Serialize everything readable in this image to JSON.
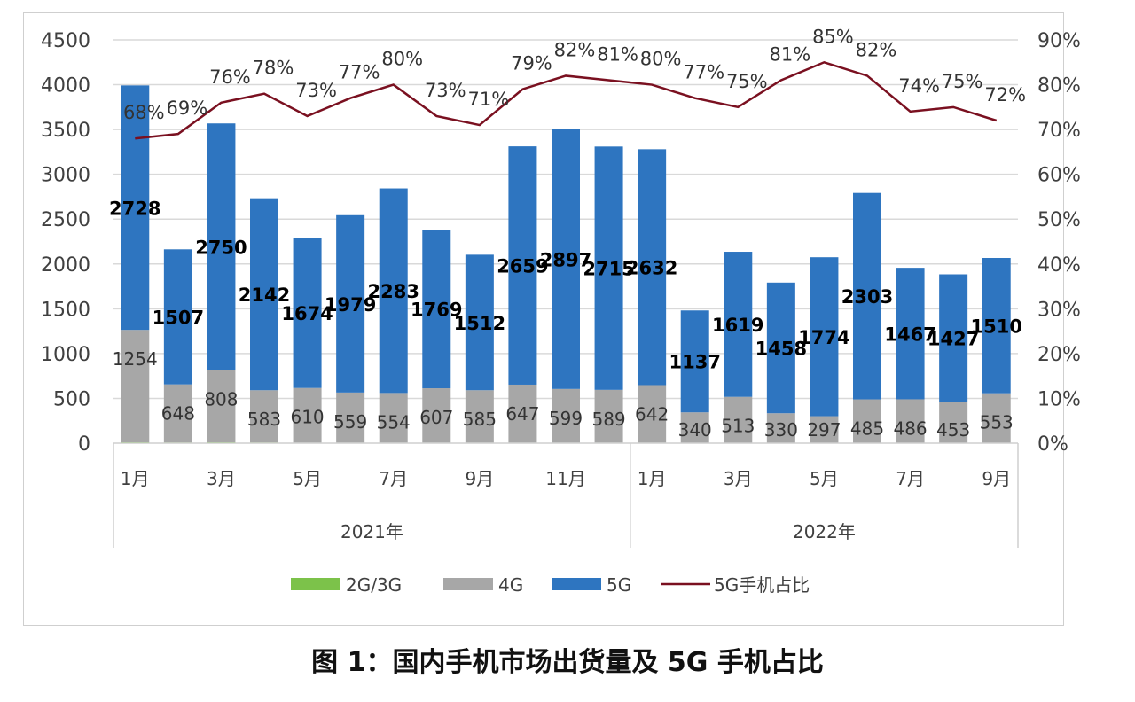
{
  "caption": "图 1：国内手机市场出货量及 5G 手机占比",
  "colors": {
    "g23": "#7cc24a",
    "g4": "#a7a7a7",
    "g5": "#2e75c0",
    "share_line": "#7a1020",
    "grid": "#d9d9d9",
    "axis_text": "#404040"
  },
  "legend": [
    {
      "key": "g23",
      "label": "2G/3G",
      "type": "box"
    },
    {
      "key": "g4",
      "label": "4G",
      "type": "box"
    },
    {
      "key": "g5",
      "label": "5G",
      "type": "box"
    },
    {
      "key": "share_line",
      "label": "5G手机占比",
      "type": "line"
    }
  ],
  "chart_data": {
    "type": "bar",
    "stacked": true,
    "title": "国内手机市场出货量及 5G 手机占比",
    "categories": [
      "2021-1月",
      "2021-2月",
      "2021-3月",
      "2021-4月",
      "2021-5月",
      "2021-6月",
      "2021-7月",
      "2021-8月",
      "2021-9月",
      "2021-10月",
      "2021-11月",
      "2021-12月",
      "2022-1月",
      "2022-2月",
      "2022-3月",
      "2022-4月",
      "2022-5月",
      "2022-6月",
      "2022-7月",
      "2022-8月",
      "2022-9月"
    ],
    "x_tick_labels": [
      {
        "index": 0,
        "label": "1月"
      },
      {
        "index": 2,
        "label": "3月"
      },
      {
        "index": 4,
        "label": "5月"
      },
      {
        "index": 6,
        "label": "7月"
      },
      {
        "index": 8,
        "label": "9月"
      },
      {
        "index": 10,
        "label": "11月"
      },
      {
        "index": 12,
        "label": "1月"
      },
      {
        "index": 14,
        "label": "3月"
      },
      {
        "index": 16,
        "label": "5月"
      },
      {
        "index": 18,
        "label": "7月"
      },
      {
        "index": 20,
        "label": "9月"
      }
    ],
    "year_groups": [
      {
        "label": "2021年",
        "start": 0,
        "end": 11
      },
      {
        "label": "2022年",
        "start": 12,
        "end": 20
      }
    ],
    "series": [
      {
        "name": "2G/3G",
        "type": "bar",
        "axis": "left",
        "values": [
          10,
          8,
          10,
          8,
          6,
          6,
          6,
          6,
          6,
          6,
          6,
          6,
          6,
          4,
          4,
          4,
          4,
          4,
          4,
          4,
          4
        ]
      },
      {
        "name": "4G",
        "type": "bar",
        "axis": "left",
        "values": [
          1254,
          648,
          808,
          583,
          610,
          559,
          554,
          607,
          585,
          647,
          599,
          589,
          642,
          340,
          513,
          330,
          297,
          485,
          486,
          453,
          553
        ]
      },
      {
        "name": "5G",
        "type": "bar",
        "axis": "left",
        "values": [
          2728,
          1507,
          2750,
          2142,
          1674,
          1979,
          2283,
          1769,
          1512,
          2659,
          2897,
          2715,
          2632,
          1137,
          1619,
          1458,
          1774,
          2303,
          1467,
          1427,
          1510
        ]
      },
      {
        "name": "5G手机占比",
        "type": "line",
        "axis": "right",
        "values": [
          68,
          69,
          76,
          78,
          73,
          77,
          80,
          73,
          71,
          79,
          82,
          81,
          80,
          77,
          75,
          81,
          85,
          82,
          74,
          75,
          72
        ]
      }
    ],
    "left_axis": {
      "min": 0,
      "max": 4500,
      "step": 500,
      "ticks": [
        "0",
        "500",
        "1000",
        "1500",
        "2000",
        "2500",
        "3000",
        "3500",
        "4000",
        "4500"
      ]
    },
    "right_axis": {
      "min": 0,
      "max": 90,
      "step": 10,
      "ticks": [
        "0%",
        "10%",
        "20%",
        "30%",
        "40%",
        "50%",
        "60%",
        "70%",
        "80%",
        "90%"
      ]
    },
    "xlabel": "",
    "ylabel": "",
    "ylim": [
      0,
      4500
    ],
    "y2lim": [
      0,
      0.9
    ],
    "grid": true,
    "legend_position": "bottom"
  }
}
